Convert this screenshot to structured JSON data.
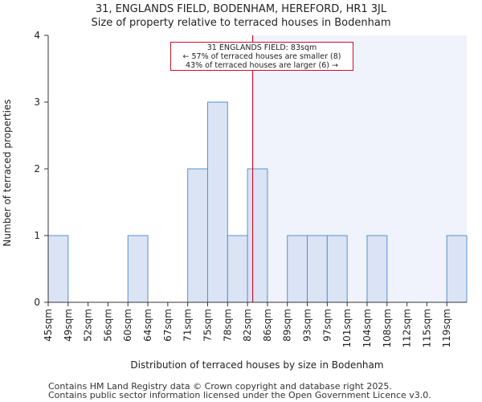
{
  "chart_data": {
    "type": "bar",
    "title": "31, ENGLANDS FIELD, BODENHAM, HEREFORD, HR1 3JL",
    "subtitle": "Size of property relative to terraced houses in Bodenham",
    "xlabel": "Distribution of terraced houses by size in Bodenham",
    "ylabel": "Number of terraced properties",
    "categories": [
      "45sqm",
      "49sqm",
      "52sqm",
      "56sqm",
      "60sqm",
      "64sqm",
      "67sqm",
      "71sqm",
      "75sqm",
      "78sqm",
      "82sqm",
      "86sqm",
      "89sqm",
      "93sqm",
      "97sqm",
      "101sqm",
      "104sqm",
      "108sqm",
      "112sqm",
      "115sqm",
      "119sqm"
    ],
    "values": [
      1,
      0,
      0,
      0,
      1,
      0,
      0,
      2,
      3,
      1,
      2,
      0,
      1,
      1,
      1,
      0,
      1,
      0,
      0,
      0,
      1
    ],
    "ylim": [
      0,
      4
    ],
    "yticks": [
      0,
      1,
      2,
      3,
      4
    ],
    "grid": false,
    "marker_value": 83,
    "marker_index": 10.26,
    "highlight_from_index": 10.26,
    "annotation": {
      "line1": "31 ENGLANDS FIELD: 83sqm",
      "line2": "← 57% of terraced houses are smaller (8)",
      "line3": "43% of terraced houses are larger (6) →"
    },
    "colors": {
      "bar_fill": "#dbe4f4",
      "bar_stroke": "#5b8fd0",
      "highlight_bg": "#f0f3fb",
      "marker": "#c8102e",
      "axis": "#333333"
    }
  },
  "footer": {
    "line1": "Contains HM Land Registry data © Crown copyright and database right 2025.",
    "line2": "Contains public sector information licensed under the Open Government Licence v3.0."
  }
}
